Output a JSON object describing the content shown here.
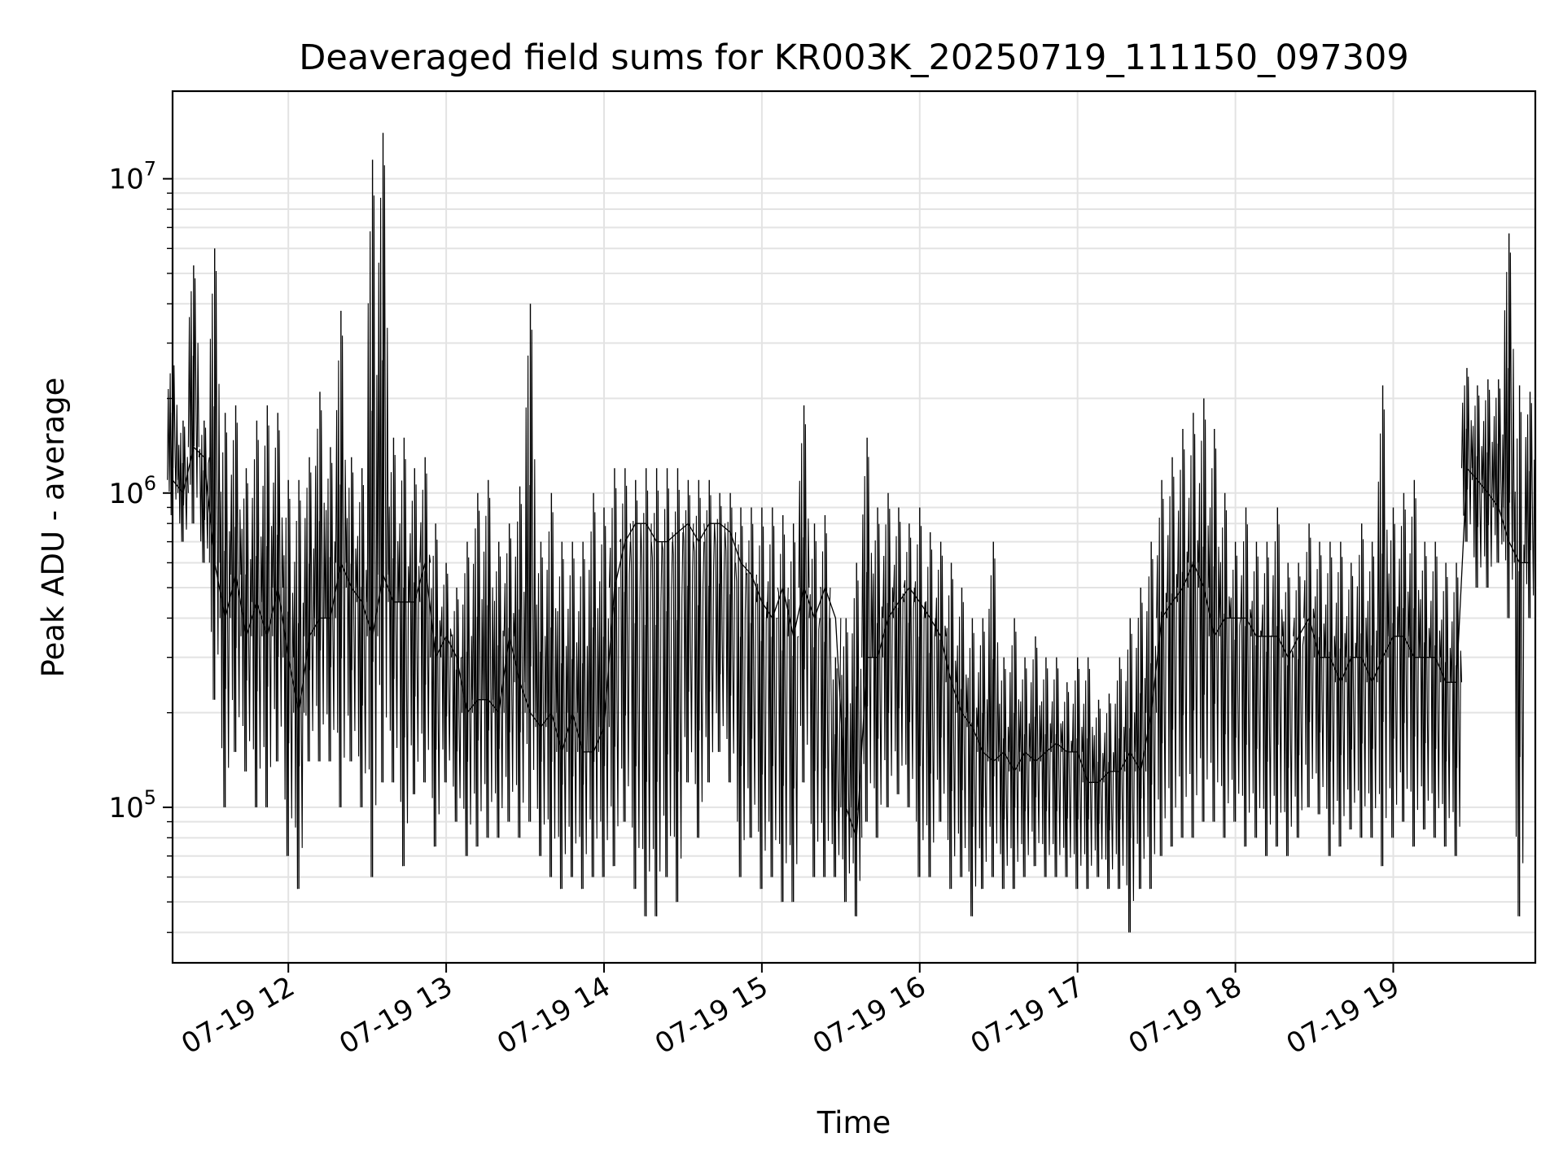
{
  "chart_data": {
    "type": "line",
    "title": "Deaveraged field sums for KR003K_20250719_111150_097309",
    "xlabel": "Time",
    "ylabel": "Peak ADU - average",
    "yscale": "log",
    "xlim": [
      "07-19 11:16",
      "07-19 19:54"
    ],
    "ylim": [
      32000,
      19000000
    ],
    "grid": true,
    "x_ticks": [
      "07-19 12",
      "07-19 13",
      "07-19 14",
      "07-19 15",
      "07-19 16",
      "07-19 17",
      "07-19 18",
      "07-19 19"
    ],
    "y_ticks": [
      {
        "value": 100000,
        "base": "10",
        "exp": "5"
      },
      {
        "value": 1000000,
        "base": "10",
        "exp": "6"
      },
      {
        "value": 10000000,
        "base": "10",
        "exp": "7"
      }
    ],
    "line_color": "#000000",
    "series": [
      {
        "x": [
          "07-19 11:16",
          "07-19 11:20",
          "07-19 11:24",
          "07-19 11:28",
          "07-19 11:32",
          "07-19 11:36",
          "07-19 11:40",
          "07-19 11:44",
          "07-19 11:48",
          "07-19 11:52",
          "07-19 11:56",
          "07-19 12:00",
          "07-19 12:04",
          "07-19 12:08",
          "07-19 12:12",
          "07-19 12:16",
          "07-19 12:20",
          "07-19 12:24",
          "07-19 12:28",
          "07-19 12:32",
          "07-19 12:36",
          "07-19 12:40",
          "07-19 12:44",
          "07-19 12:48",
          "07-19 12:52",
          "07-19 12:56",
          "07-19 13:00",
          "07-19 13:04",
          "07-19 13:08",
          "07-19 13:12",
          "07-19 13:16",
          "07-19 13:20",
          "07-19 13:24",
          "07-19 13:28",
          "07-19 13:32",
          "07-19 13:36",
          "07-19 13:40",
          "07-19 13:44",
          "07-19 13:48",
          "07-19 13:52",
          "07-19 13:56",
          "07-19 14:00",
          "07-19 14:04",
          "07-19 14:08",
          "07-19 14:12",
          "07-19 14:16",
          "07-19 14:20",
          "07-19 14:24",
          "07-19 14:28",
          "07-19 14:32",
          "07-19 14:36",
          "07-19 14:40",
          "07-19 14:44",
          "07-19 14:48",
          "07-19 14:52",
          "07-19 14:56",
          "07-19 15:00",
          "07-19 15:04",
          "07-19 15:08",
          "07-19 15:12",
          "07-19 15:16",
          "07-19 15:20",
          "07-19 15:24",
          "07-19 15:28",
          "07-19 15:32",
          "07-19 15:36",
          "07-19 15:40",
          "07-19 15:44",
          "07-19 15:48",
          "07-19 15:52",
          "07-19 15:56",
          "07-19 16:00",
          "07-19 16:04",
          "07-19 16:08",
          "07-19 16:12",
          "07-19 16:16",
          "07-19 16:20",
          "07-19 16:24",
          "07-19 16:28",
          "07-19 16:32",
          "07-19 16:36",
          "07-19 16:40",
          "07-19 16:44",
          "07-19 16:48",
          "07-19 16:52",
          "07-19 16:56",
          "07-19 17:00",
          "07-19 17:04",
          "07-19 17:08",
          "07-19 17:12",
          "07-19 17:16",
          "07-19 17:20",
          "07-19 17:24",
          "07-19 17:28",
          "07-19 17:32",
          "07-19 17:36",
          "07-19 17:40",
          "07-19 17:44",
          "07-19 17:48",
          "07-19 17:52",
          "07-19 17:56",
          "07-19 18:00",
          "07-19 18:04",
          "07-19 18:08",
          "07-19 18:12",
          "07-19 18:16",
          "07-19 18:20",
          "07-19 18:24",
          "07-19 18:28",
          "07-19 18:32",
          "07-19 18:36",
          "07-19 18:40",
          "07-19 18:44",
          "07-19 18:48",
          "07-19 18:52",
          "07-19 18:56",
          "07-19 19:00",
          "07-19 19:04",
          "07-19 19:08",
          "07-19 19:12",
          "07-19 19:16",
          "07-19 19:20",
          "07-19 19:24",
          "07-19 19:28",
          "07-19 19:32",
          "07-19 19:36",
          "07-19 19:40",
          "07-19 19:44",
          "07-19 19:48",
          "07-19 19:52"
        ],
        "y": [
          1100000,
          1000000,
          1400000,
          1300000,
          600000,
          400000,
          550000,
          350000,
          450000,
          350000,
          500000,
          300000,
          200000,
          350000,
          400000,
          400000,
          600000,
          500000,
          450000,
          350000,
          550000,
          450000,
          450000,
          450000,
          600000,
          300000,
          350000,
          300000,
          200000,
          220000,
          220000,
          200000,
          350000,
          250000,
          200000,
          180000,
          200000,
          150000,
          200000,
          150000,
          150000,
          180000,
          500000,
          700000,
          800000,
          800000,
          700000,
          700000,
          750000,
          800000,
          700000,
          800000,
          800000,
          750000,
          600000,
          550000,
          450000,
          400000,
          500000,
          350000,
          500000,
          400000,
          500000,
          400000,
          100000,
          80000,
          300000,
          300000,
          400000,
          450000,
          500000,
          450000,
          400000,
          350000,
          250000,
          200000,
          180000,
          150000,
          140000,
          150000,
          130000,
          150000,
          140000,
          150000,
          160000,
          150000,
          150000,
          120000,
          120000,
          130000,
          130000,
          150000,
          130000,
          200000,
          400000,
          450000,
          500000,
          600000,
          500000,
          350000,
          400000,
          400000,
          400000,
          350000,
          350000,
          350000,
          300000,
          350000,
          400000,
          300000,
          300000,
          250000,
          300000,
          300000,
          250000,
          300000,
          350000,
          350000,
          300000,
          300000,
          300000,
          250000,
          250000,
          1200000,
          1100000,
          1000000,
          900000,
          700000,
          600000,
          600000
        ],
        "min": [
          850000,
          700000,
          800000,
          600000,
          220000,
          100000,
          150000,
          130000,
          100000,
          100000,
          140000,
          70000,
          55000,
          140000,
          140000,
          140000,
          100000,
          140000,
          100000,
          60000,
          120000,
          120000,
          65000,
          110000,
          120000,
          75000,
          120000,
          90000,
          70000,
          75000,
          80000,
          80000,
          90000,
          80000,
          90000,
          70000,
          60000,
          55000,
          60000,
          55000,
          60000,
          60000,
          65000,
          90000,
          55000,
          45000,
          45000,
          60000,
          50000,
          120000,
          80000,
          120000,
          150000,
          120000,
          60000,
          80000,
          55000,
          60000,
          50000,
          50000,
          120000,
          60000,
          60000,
          60000,
          50000,
          45000,
          90000,
          80000,
          100000,
          110000,
          100000,
          60000,
          60000,
          90000,
          55000,
          60000,
          45000,
          55000,
          60000,
          55000,
          55000,
          60000,
          65000,
          60000,
          60000,
          60000,
          55000,
          55000,
          60000,
          55000,
          55000,
          40000,
          55000,
          55000,
          70000,
          75000,
          80000,
          80000,
          90000,
          90000,
          80000,
          90000,
          75000,
          80000,
          70000,
          75000,
          70000,
          80000,
          100000,
          95000,
          70000,
          75000,
          85000,
          80000,
          80000,
          65000,
          80000,
          90000,
          75000,
          85000,
          80000,
          75000,
          70000,
          700000,
          500000,
          500000,
          600000,
          400000,
          45000,
          400000
        ],
        "max": [
          2700000,
          1700000,
          5300000,
          1700000,
          6000000,
          1800000,
          1900000,
          1200000,
          1700000,
          1900000,
          1800000,
          1100000,
          1100000,
          1300000,
          2100000,
          1400000,
          3800000,
          1300000,
          1200000,
          11500000,
          14000000,
          1500000,
          1500000,
          1200000,
          1300000,
          800000,
          600000,
          500000,
          700000,
          1000000,
          1100000,
          700000,
          800000,
          1050000,
          4000000,
          700000,
          1000000,
          700000,
          700000,
          700000,
          1000000,
          900000,
          1200000,
          1200000,
          1100000,
          1200000,
          1200000,
          1200000,
          1200000,
          1100000,
          1100000,
          1100000,
          1000000,
          1000000,
          900000,
          900000,
          900000,
          900000,
          850000,
          800000,
          1900000,
          800000,
          850000,
          300000,
          400000,
          600000,
          1500000,
          900000,
          1000000,
          900000,
          800000,
          900000,
          750000,
          700000,
          600000,
          500000,
          400000,
          400000,
          700000,
          300000,
          400000,
          300000,
          350000,
          300000,
          300000,
          250000,
          300000,
          300000,
          220000,
          230000,
          300000,
          400000,
          500000,
          700000,
          1100000,
          1300000,
          1600000,
          1800000,
          2000000,
          1600000,
          1000000,
          700000,
          900000,
          700000,
          700000,
          900000,
          600000,
          600000,
          800000,
          700000,
          700000,
          700000,
          600000,
          800000,
          700000,
          2200000,
          900000,
          1000000,
          1100000,
          700000,
          700000,
          600000,
          600000,
          2500000,
          2200000,
          2300000,
          2300000,
          6700000,
          2200000,
          2100000
        ]
      }
    ]
  }
}
